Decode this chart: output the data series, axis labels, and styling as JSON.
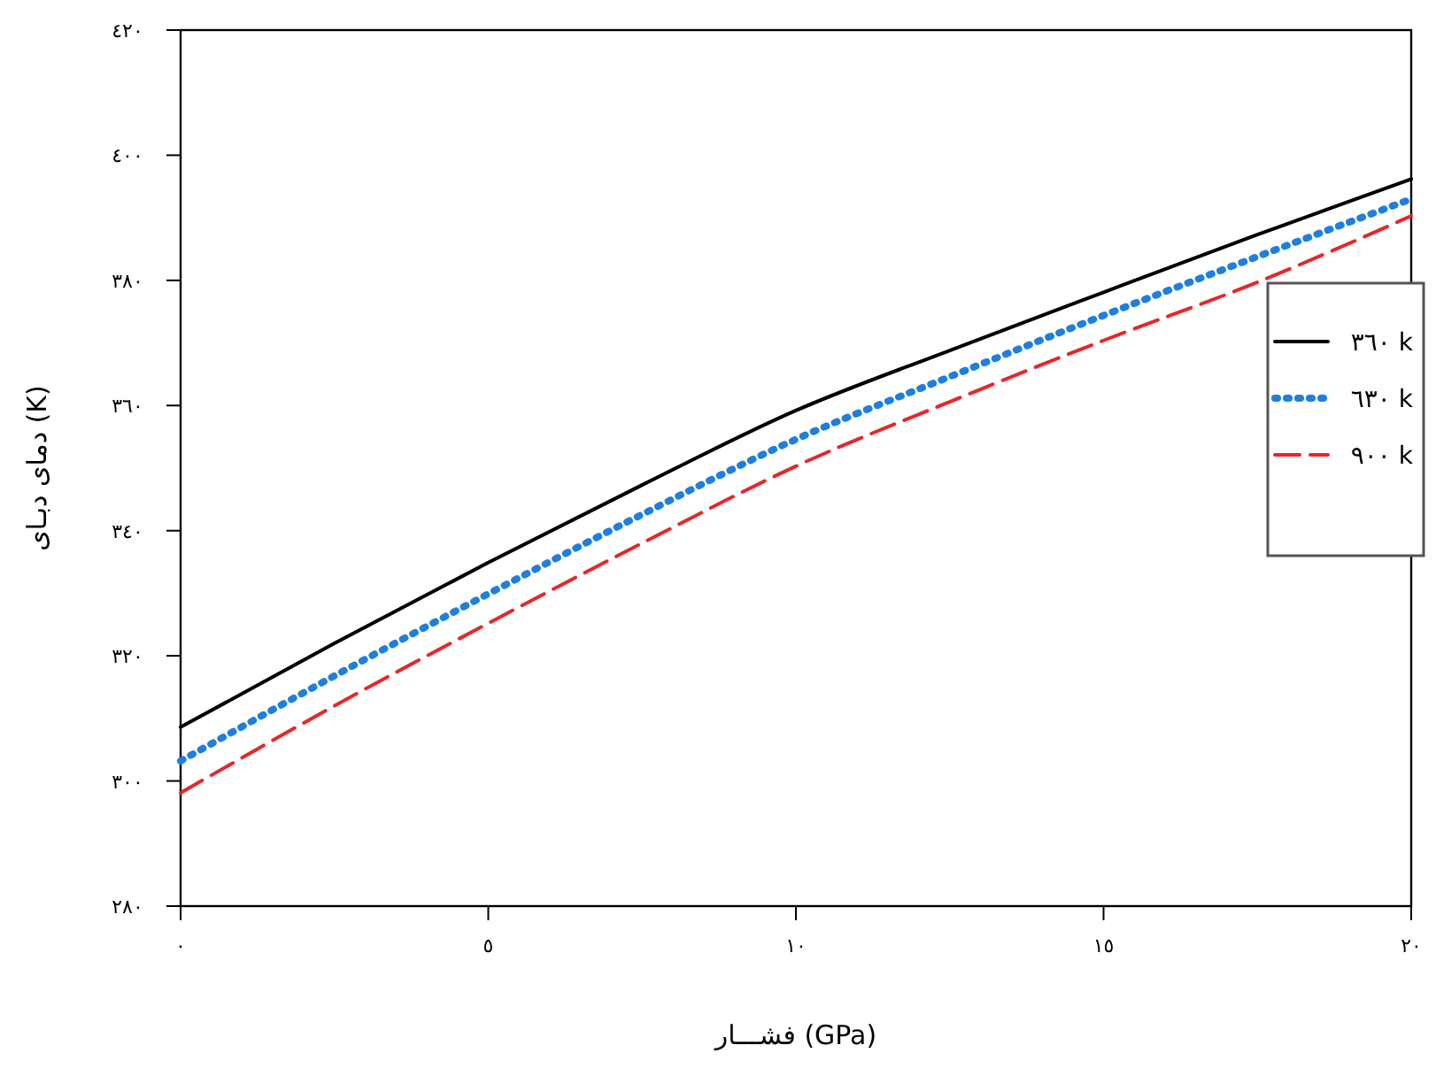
{
  "chart_data": {
    "type": "line",
    "xlabel": "فشـــار (GPa)",
    "ylabel": "دمای دبـای (K)",
    "x": [
      0,
      2.5,
      5,
      7.5,
      10,
      12.5,
      15,
      17.5,
      20
    ],
    "xlim": [
      0,
      20
    ],
    "xticks": [
      {
        "value": 0,
        "label": "٠"
      },
      {
        "value": 5,
        "label": "٥"
      },
      {
        "value": 10,
        "label": "١٠"
      },
      {
        "value": 15,
        "label": "١٥"
      },
      {
        "value": 20,
        "label": "٢٠"
      }
    ],
    "ylim": [
      280,
      420
    ],
    "yticks": [
      {
        "value": 280,
        "label": "٢٨٠"
      },
      {
        "value": 300,
        "label": "٣٠٠"
      },
      {
        "value": 320,
        "label": "٣٢٠"
      },
      {
        "value": 340,
        "label": "٣٤٠"
      },
      {
        "value": 360,
        "label": "٣٦٠"
      },
      {
        "value": 380,
        "label": "٣٨٠"
      },
      {
        "value": 400,
        "label": "٤٠٠"
      },
      {
        "value": 420,
        "label": "٤٢٠"
      }
    ],
    "grid": false,
    "legend": "right",
    "marker": "none",
    "series": [
      {
        "name": "٣٦٠ k",
        "color": "#000000",
        "line_style": "solid",
        "values": [
          308.6,
          322.0,
          334.9,
          347.3,
          359.2,
          368.8,
          378.1,
          387.3,
          396.2
        ]
      },
      {
        "name": "٦٣٠ k",
        "color": "#1e7fe0",
        "line_style": "dotted",
        "values": [
          303.2,
          316.8,
          329.9,
          342.6,
          354.6,
          364.6,
          374.4,
          383.8,
          393.0
        ]
      },
      {
        "name": "٩٠٠ k",
        "color": "#e8262a",
        "line_style": "dashed",
        "values": [
          298.1,
          312.0,
          325.2,
          338.0,
          350.3,
          360.6,
          370.4,
          379.7,
          390.3
        ]
      }
    ]
  }
}
